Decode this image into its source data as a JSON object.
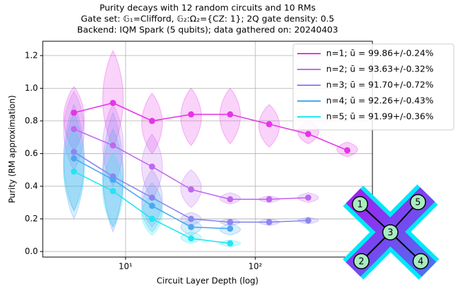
{
  "chart_data": {
    "type": "violin",
    "title": [
      "Purity decays with 12 random circuits and 10 RMs",
      "Gate set: 𝔾₁=Clifford, 𝔾₂:Ω₂={CZ: 1}; 2Q gate density: 0.5",
      "Backend: IQM Spark (5 qubits); data gathered on: 20240403"
    ],
    "x_label": "Circuit Layer Depth (log)",
    "y_label": "Purity (RM approximation)",
    "x": [
      4,
      8,
      16,
      32,
      64,
      128,
      256,
      512
    ],
    "x_log": true,
    "xlim": [
      2.3,
      800
    ],
    "xticks": [
      {
        "value": 10,
        "label": "10¹"
      },
      {
        "value": 100,
        "label": "10²"
      }
    ],
    "ylim": [
      -0.034,
      1.288
    ],
    "yticks": [
      {
        "value": 0,
        "label": "0.0"
      },
      0.2,
      0.4,
      0.6,
      0.8,
      {
        "value": 1,
        "label": "1.0"
      },
      1.2
    ],
    "grid": true,
    "legend": "upper right",
    "series": [
      {
        "name": "n=1; ū = 99.86+/-0.24%",
        "color": "#e535e5",
        "values": [
          0.85,
          0.91,
          0.8,
          0.84,
          0.84,
          0.78,
          0.72,
          0.62
        ],
        "min": [
          0.62,
          0.64,
          0.6,
          0.65,
          0.66,
          0.64,
          0.66,
          0.58
        ],
        "max": [
          1.01,
          1.23,
          0.97,
          1.0,
          1.0,
          0.9,
          0.8,
          0.67
        ]
      },
      {
        "name": "n=2; ū = 93.63+/-0.32%",
        "color": "#c068f0",
        "values": [
          0.75,
          0.65,
          0.52,
          0.38,
          0.32,
          0.32,
          0.33,
          null
        ],
        "min": [
          0.5,
          0.4,
          0.32,
          0.27,
          0.29,
          0.3,
          0.3,
          null
        ],
        "max": [
          0.98,
          0.9,
          0.72,
          0.5,
          0.36,
          0.34,
          0.36,
          null
        ]
      },
      {
        "name": "n=3; ū = 91.70+/-0.72%",
        "color": "#8c86f0",
        "values": [
          0.61,
          0.46,
          0.33,
          0.2,
          0.18,
          0.18,
          0.19,
          null
        ],
        "min": [
          0.25,
          0.12,
          0.15,
          0.16,
          0.16,
          0.16,
          0.17,
          null
        ],
        "max": [
          0.9,
          0.85,
          0.5,
          0.24,
          0.2,
          0.2,
          0.21,
          null
        ]
      },
      {
        "name": "n=4; ū = 92.26+/-0.43%",
        "color": "#4aa8f0",
        "values": [
          0.57,
          0.44,
          0.28,
          0.15,
          0.14,
          null,
          null,
          null
        ],
        "min": [
          0.2,
          0.15,
          0.12,
          0.1,
          0.1,
          null,
          null,
          null
        ],
        "max": [
          0.85,
          0.75,
          0.42,
          0.2,
          0.17,
          null,
          null,
          null
        ]
      },
      {
        "name": "n=5; ū = 91.99+/-0.36%",
        "color": "#22e6f0",
        "values": [
          0.49,
          0.37,
          0.2,
          0.08,
          0.05,
          null,
          null,
          null
        ],
        "min": [
          0.25,
          0.15,
          0.1,
          0.05,
          0.03,
          null,
          null,
          null
        ],
        "max": [
          0.75,
          0.6,
          0.35,
          0.12,
          0.07,
          null,
          null,
          null
        ]
      }
    ]
  },
  "topology": {
    "nodes": [
      "1",
      "2",
      "3",
      "4",
      "5"
    ]
  }
}
